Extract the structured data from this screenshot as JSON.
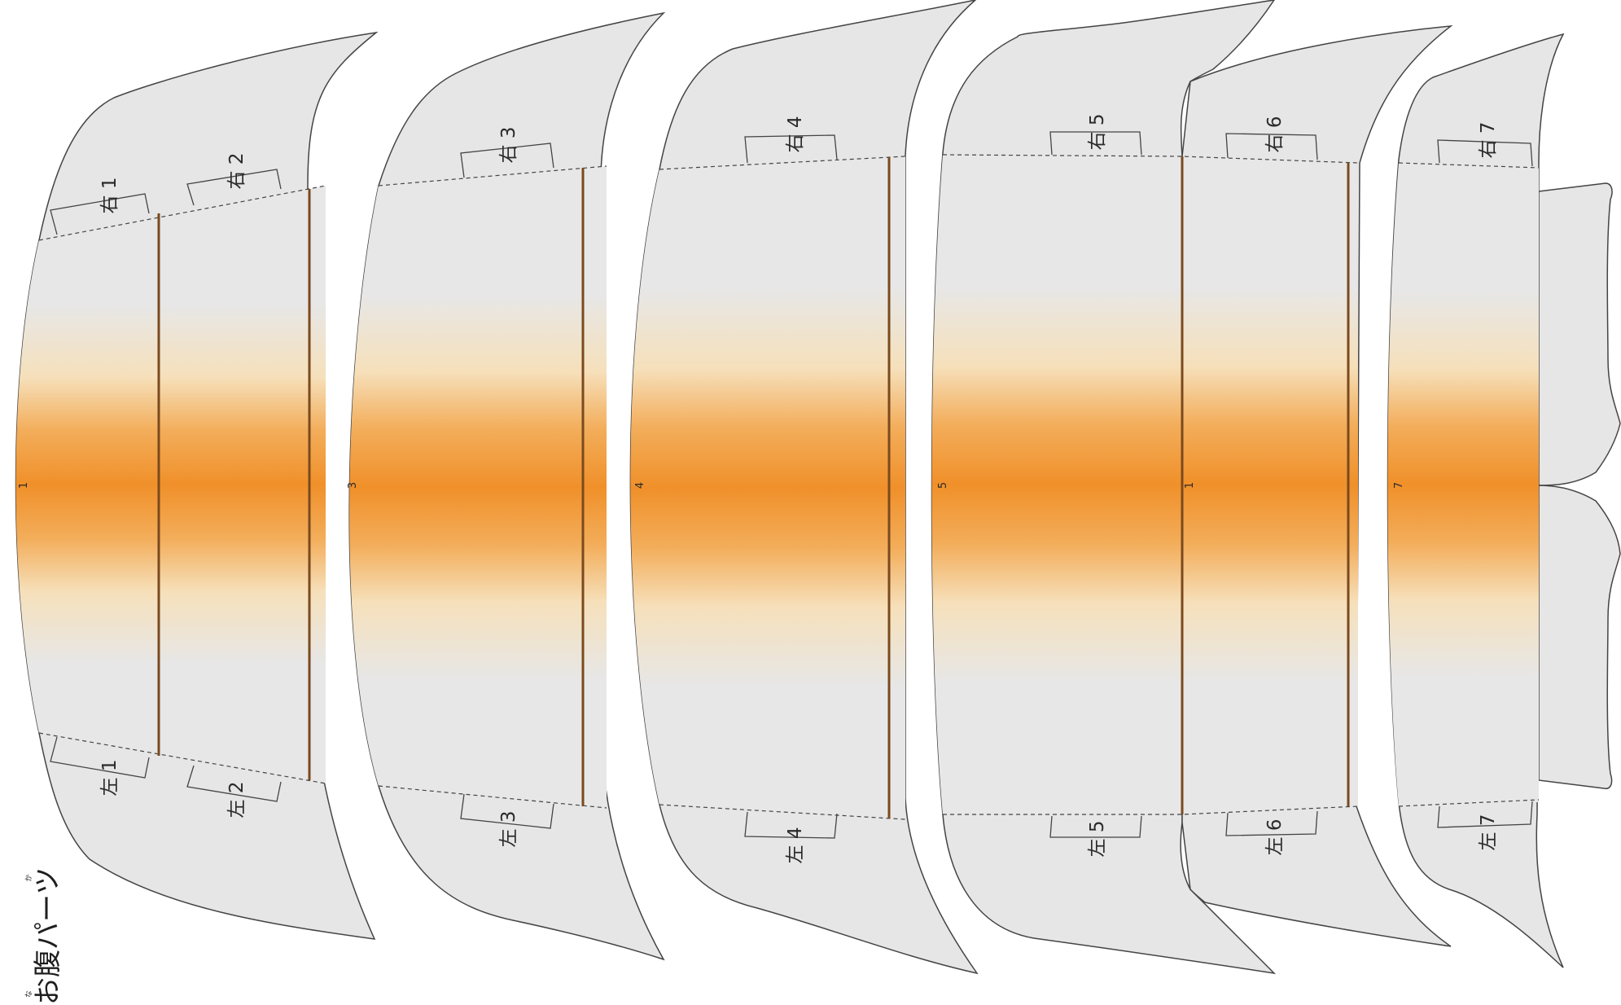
{
  "title": "お腹パーツ",
  "title_ruby": "なか",
  "colors": {
    "paper": "#e6e6e6",
    "outline": "#444444",
    "fold_line": "#7a4a1e",
    "orange": "#f0902a",
    "cream": "#f6dcae"
  },
  "panel_numbers": [
    "1",
    "3",
    "4",
    "5",
    "1",
    "7"
  ],
  "right_labels": [
    "右 1",
    "右 2",
    "右 3",
    "右 4",
    "右 5",
    "右 6",
    "右 7"
  ],
  "left_labels": [
    "左 1",
    "左 2",
    "左 3",
    "左 4",
    "左 5",
    "左 6",
    "左 7"
  ]
}
